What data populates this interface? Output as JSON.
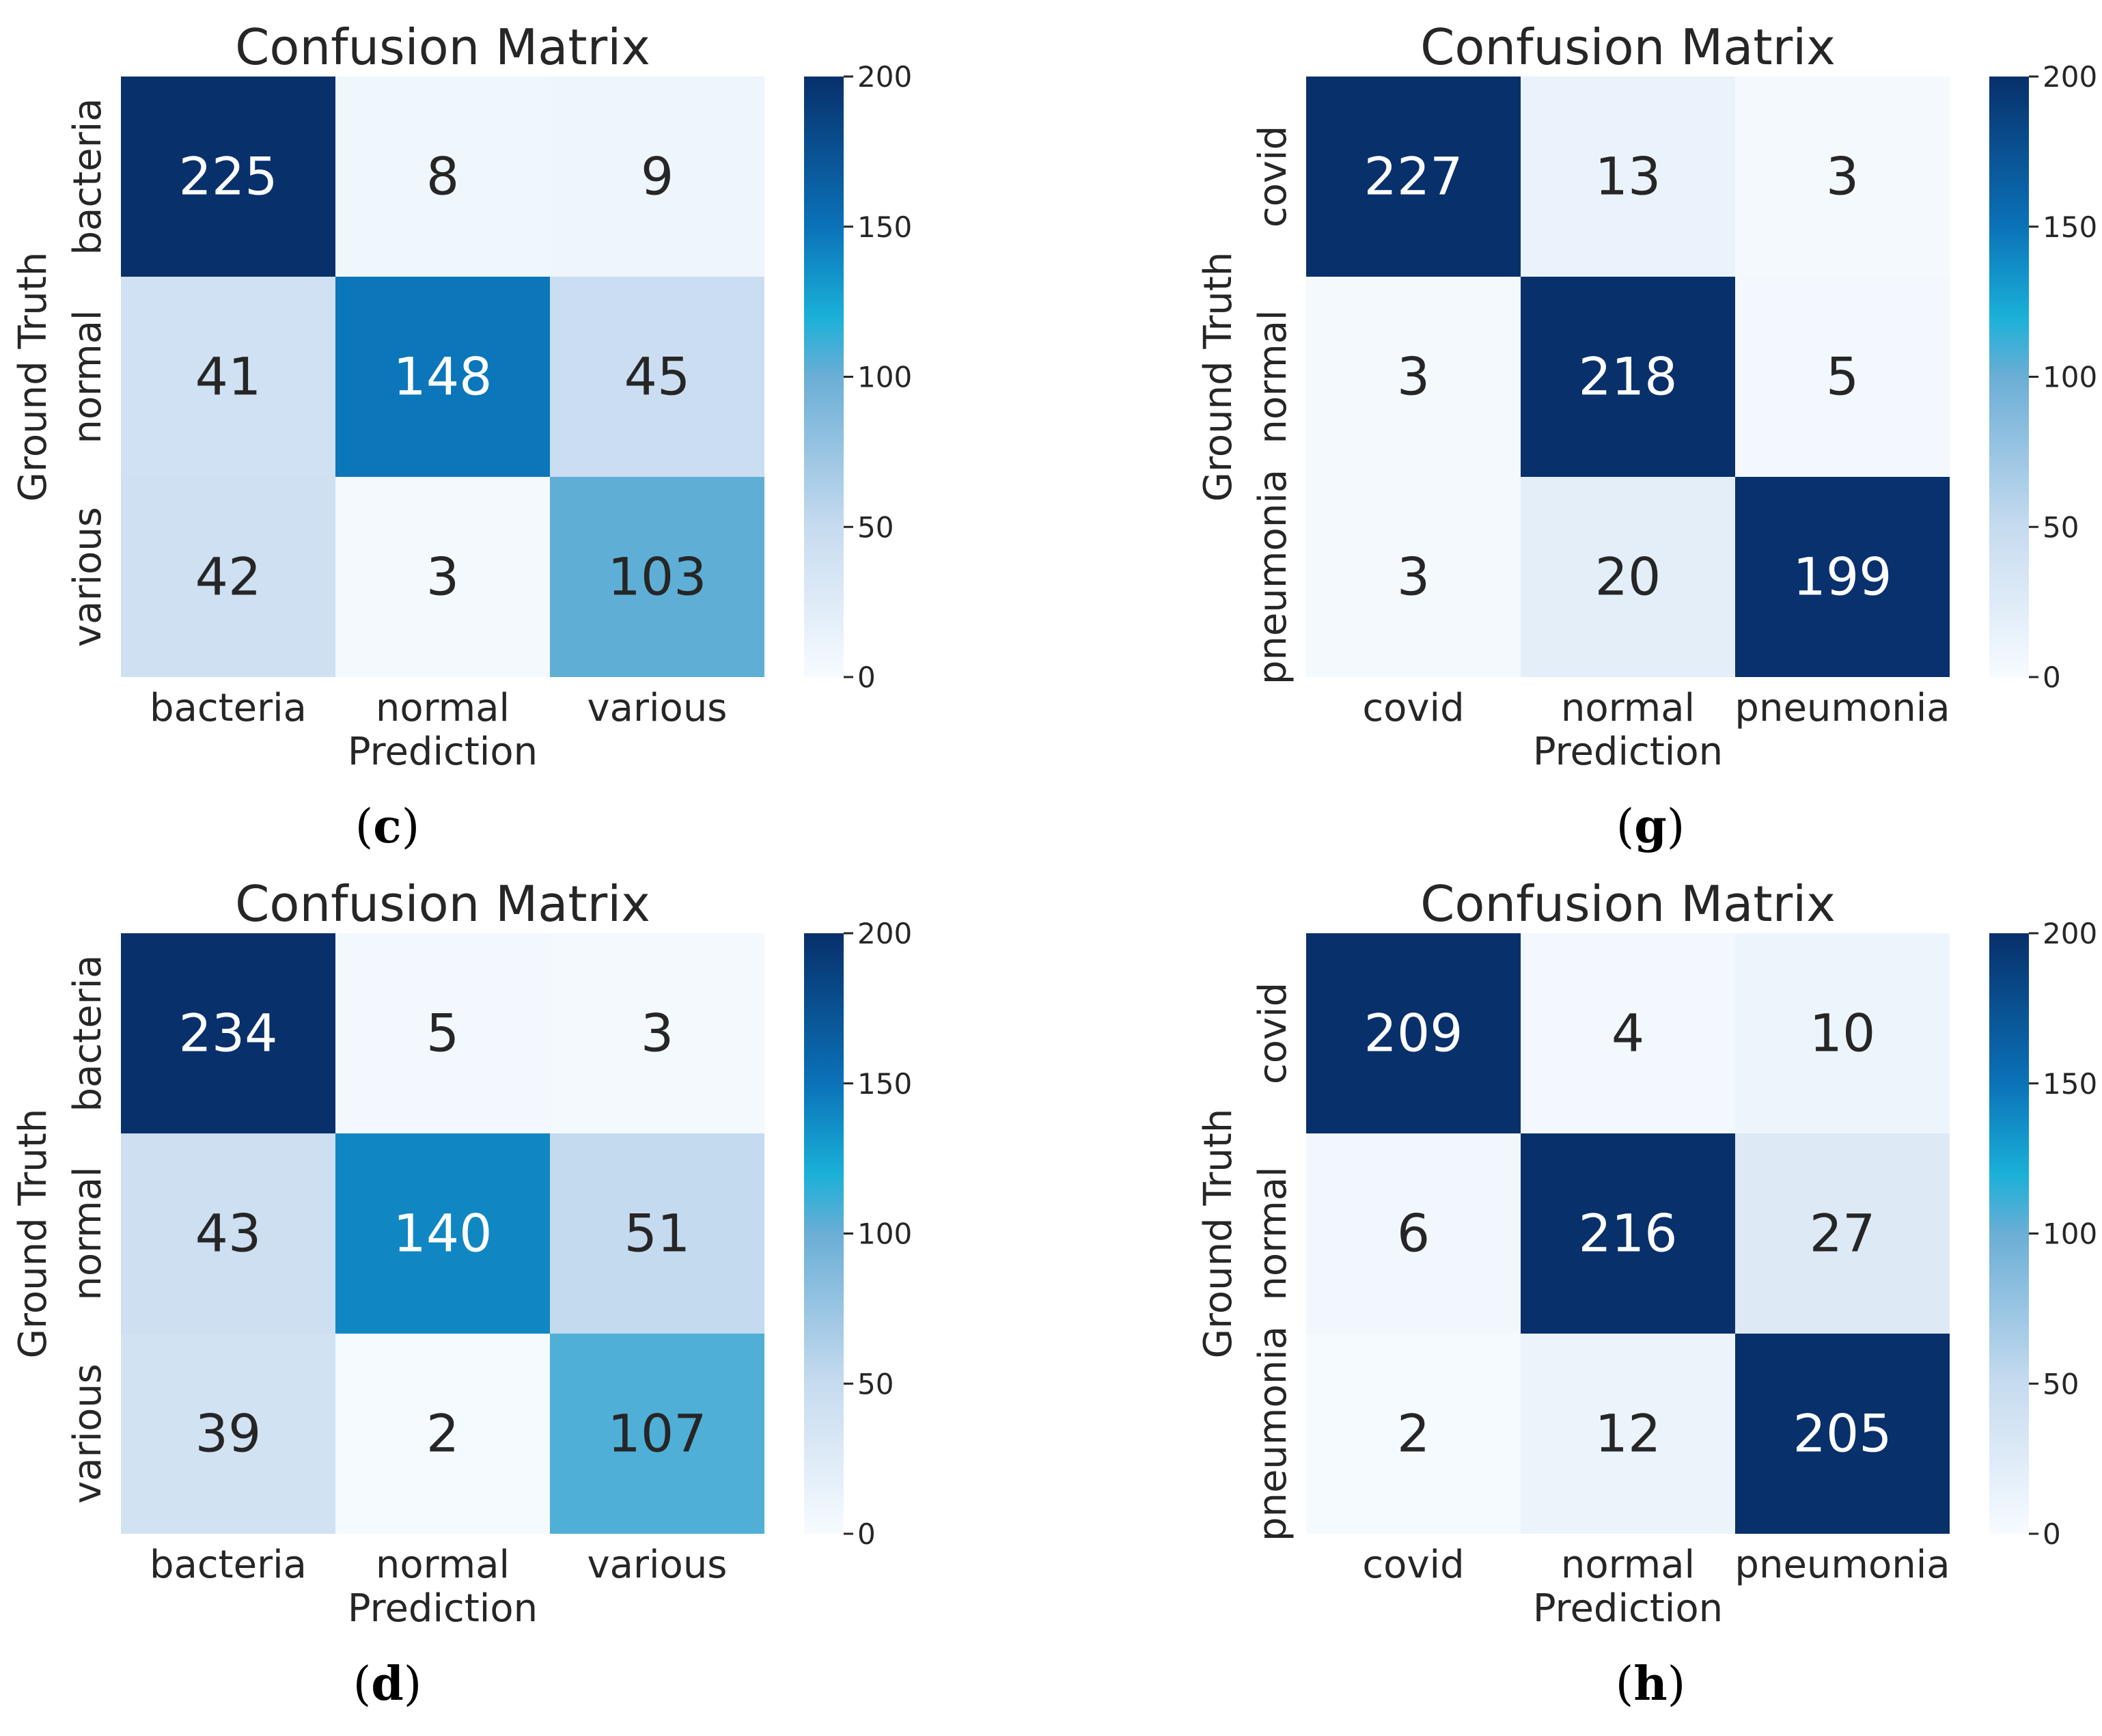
{
  "figure": {
    "panels": [
      {
        "id": "c",
        "label_open": "(",
        "label_letter": "c",
        "label_close": ")"
      },
      {
        "id": "g",
        "label_open": "(",
        "label_letter": "g",
        "label_close": ")"
      },
      {
        "id": "d",
        "label_open": "(",
        "label_letter": "d",
        "label_close": ")"
      },
      {
        "id": "h",
        "label_open": "(",
        "label_letter": "h",
        "label_close": ")"
      }
    ]
  },
  "colors": {
    "cmap_low": "#f7fbff",
    "cmap_mid1": "#c6dbef",
    "cmap_mid2": "#6baed6",
    "cmap_mid3": "#1ab0d8",
    "cmap_mid4": "#0b72b8",
    "cmap_high": "#08306b",
    "text_dark": "#262626",
    "text_light": "#ffffff"
  },
  "chart_data": [
    {
      "panel": "c",
      "type": "heatmap",
      "title": "Confusion Matrix",
      "xlabel": "Prediction",
      "ylabel": "Ground Truth",
      "x_categories": [
        "bacteria",
        "normal",
        "various"
      ],
      "y_categories": [
        "bacteria",
        "normal",
        "various"
      ],
      "values": [
        [
          225,
          8,
          9
        ],
        [
          41,
          148,
          45
        ],
        [
          42,
          3,
          103
        ]
      ],
      "colorbar": {
        "range": [
          0,
          200
        ],
        "ticks": [
          0,
          50,
          100,
          150,
          200
        ]
      }
    },
    {
      "panel": "g",
      "type": "heatmap",
      "title": "Confusion Matrix",
      "xlabel": "Prediction",
      "ylabel": "Ground Truth",
      "x_categories": [
        "covid",
        "normal",
        "pneumonia"
      ],
      "y_categories": [
        "covid",
        "normal",
        "pneumonia"
      ],
      "values": [
        [
          227,
          13,
          3
        ],
        [
          3,
          218,
          5
        ],
        [
          3,
          20,
          199
        ]
      ],
      "colorbar": {
        "range": [
          0,
          200
        ],
        "ticks": [
          0,
          50,
          100,
          150,
          200
        ]
      }
    },
    {
      "panel": "d",
      "type": "heatmap",
      "title": "Confusion Matrix",
      "xlabel": "Prediction",
      "ylabel": "Ground Truth",
      "x_categories": [
        "bacteria",
        "normal",
        "various"
      ],
      "y_categories": [
        "bacteria",
        "normal",
        "various"
      ],
      "values": [
        [
          234,
          5,
          3
        ],
        [
          43,
          140,
          51
        ],
        [
          39,
          2,
          107
        ]
      ],
      "colorbar": {
        "range": [
          0,
          200
        ],
        "ticks": [
          0,
          50,
          100,
          150,
          200
        ]
      }
    },
    {
      "panel": "h",
      "type": "heatmap",
      "title": "Confusion Matrix",
      "xlabel": "Prediction",
      "ylabel": "Ground Truth",
      "x_categories": [
        "covid",
        "normal",
        "pneumonia"
      ],
      "y_categories": [
        "covid",
        "normal",
        "pneumonia"
      ],
      "values": [
        [
          209,
          4,
          10
        ],
        [
          6,
          216,
          27
        ],
        [
          2,
          12,
          205
        ]
      ],
      "colorbar": {
        "range": [
          0,
          200
        ],
        "ticks": [
          0,
          50,
          100,
          150,
          200
        ]
      }
    }
  ]
}
